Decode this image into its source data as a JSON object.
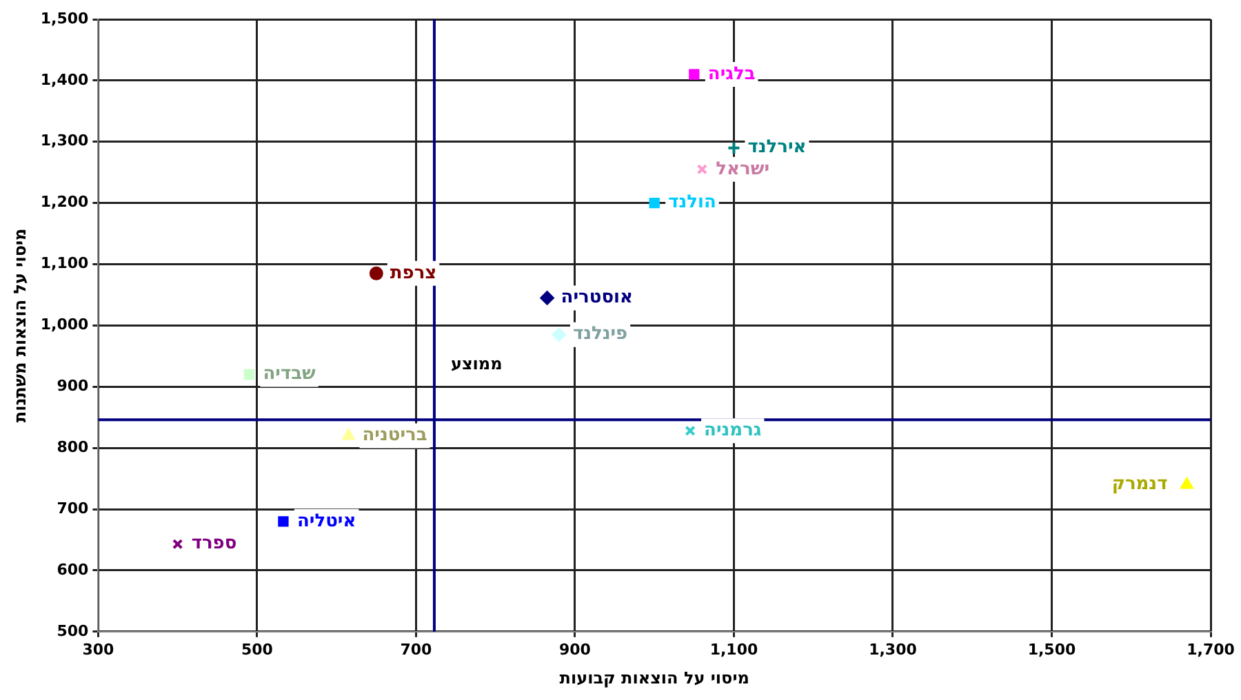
{
  "chart_data": {
    "type": "scatter",
    "xlabel": "מיסוי על הוצאות קבועות",
    "ylabel": "מיסוי על הוצאות משתנות",
    "xlim": [
      300,
      1700
    ],
    "xticks": [
      300,
      500,
      700,
      900,
      {
        "value": 1100,
        "label": "1,100"
      },
      {
        "value": 1300,
        "label": "1,300"
      },
      {
        "value": 1500,
        "label": "1,500"
      },
      {
        "value": 1700,
        "label": "1,700"
      }
    ],
    "ylim": [
      500,
      1500
    ],
    "yticks": [
      500,
      600,
      700,
      800,
      900,
      {
        "value": 1000,
        "label": "1,000"
      },
      {
        "value": 1100,
        "label": "1,100"
      },
      {
        "value": 1200,
        "label": "1,200"
      },
      {
        "value": 1300,
        "label": "1,300"
      },
      {
        "value": 1400,
        "label": "1,400"
      },
      {
        "value": 1500,
        "label": "1,500"
      }
    ],
    "grid": true,
    "legend": false,
    "series": [
      {
        "name": "בלגיה",
        "color": "#ff00ff",
        "marker": "square",
        "x": [
          1050
        ],
        "values": [
          1410
        ]
      },
      {
        "name": "אירלנד",
        "color": "#008080",
        "marker": "plus",
        "x": [
          1100
        ],
        "values": [
          1290
        ]
      },
      {
        "name": "ישראל",
        "color": "#ff99cc",
        "marker": "cross",
        "x": [
          1060
        ],
        "values": [
          1255
        ]
      },
      {
        "name": "הולנד",
        "color": "#00ccff",
        "marker": "square",
        "x": [
          1000
        ],
        "values": [
          1200
        ]
      },
      {
        "name": "צרפת",
        "color": "#800000",
        "marker": "circle",
        "x": [
          650
        ],
        "values": [
          1085
        ]
      },
      {
        "name": "אוסטריה",
        "color": "#000080",
        "marker": "diamond",
        "x": [
          865
        ],
        "values": [
          1045
        ]
      },
      {
        "name": "פינלנד",
        "color": "#ccffff",
        "marker": "diamond",
        "x": [
          880
        ],
        "values": [
          985
        ]
      },
      {
        "name": "שבדיה",
        "color": "#ccffcc",
        "marker": "square",
        "x": [
          490
        ],
        "values": [
          920
        ]
      },
      {
        "name": "בריטניה",
        "color": "#ffff99",
        "marker": "triangle",
        "x": [
          615
        ],
        "values": [
          820
        ]
      },
      {
        "name": "גרמניה",
        "color": "#33cccc",
        "marker": "cross",
        "x": [
          1045
        ],
        "values": [
          828
        ]
      },
      {
        "name": "דנמרק",
        "color": "#ffff00",
        "marker": "triangle",
        "x": [
          1670
        ],
        "values": [
          740
        ]
      },
      {
        "name": "איטליה",
        "color": "#0000ff",
        "marker": "square",
        "x": [
          533
        ],
        "values": [
          680
        ]
      },
      {
        "name": "ספרד",
        "color": "#800080",
        "marker": "cross",
        "x": [
          400
        ],
        "values": [
          643
        ]
      }
    ],
    "ref_lines": [
      {
        "axis": "x",
        "value": 723,
        "color": "#000080"
      },
      {
        "axis": "y",
        "value": 846,
        "color": "#000080"
      }
    ],
    "annotations": [
      "ממוצע"
    ]
  }
}
